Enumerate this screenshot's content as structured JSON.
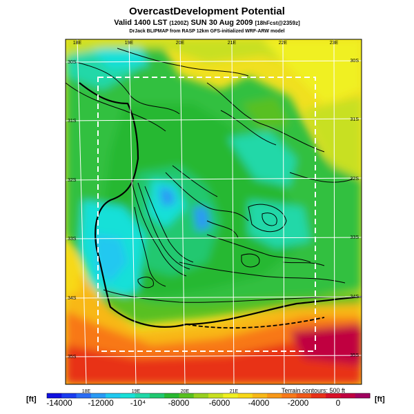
{
  "header": {
    "title": "OvercastDevelopment Potential",
    "valid_prefix": "Valid 1400 LST",
    "valid_z": "(1200Z)",
    "valid_date": "SUN 30 Aug 2009",
    "valid_fcst": "[18hFcst@2359z]",
    "credit": "DrJack BLIPMAP from RASP 12km GFS-initialized WRF-ARW model"
  },
  "map": {
    "lon_labels_top": [
      "18E",
      "19E",
      "20E",
      "21E",
      "22E",
      "23E"
    ],
    "lon_labels_bottom": [
      "18E",
      "19E",
      "20E",
      "21E"
    ],
    "lat_labels_left": [
      "30S",
      "31S",
      "32S",
      "33S",
      "34S",
      "35S"
    ],
    "lat_labels_right": [
      "30S",
      "31S",
      "32S",
      "33S",
      "34S",
      "35S"
    ],
    "terrain_note": "Terrain contours: 500 ft"
  },
  "colorbar": {
    "unit": "[ft]",
    "labels": [
      "-14000",
      "-12000",
      "-10⁴",
      "-8000",
      "-6000",
      "-4000",
      "-2000",
      "0"
    ],
    "colors": [
      "#1010e0",
      "#1a3cf0",
      "#2a6cf5",
      "#2a9af5",
      "#20c8f0",
      "#18e0d8",
      "#20d8a8",
      "#20c870",
      "#28b830",
      "#58c020",
      "#98d020",
      "#c8e020",
      "#f0f020",
      "#f8d818",
      "#f8b818",
      "#f89818",
      "#f87818",
      "#f05818",
      "#e83018",
      "#d81028",
      "#c00040",
      "#a00060"
    ]
  }
}
